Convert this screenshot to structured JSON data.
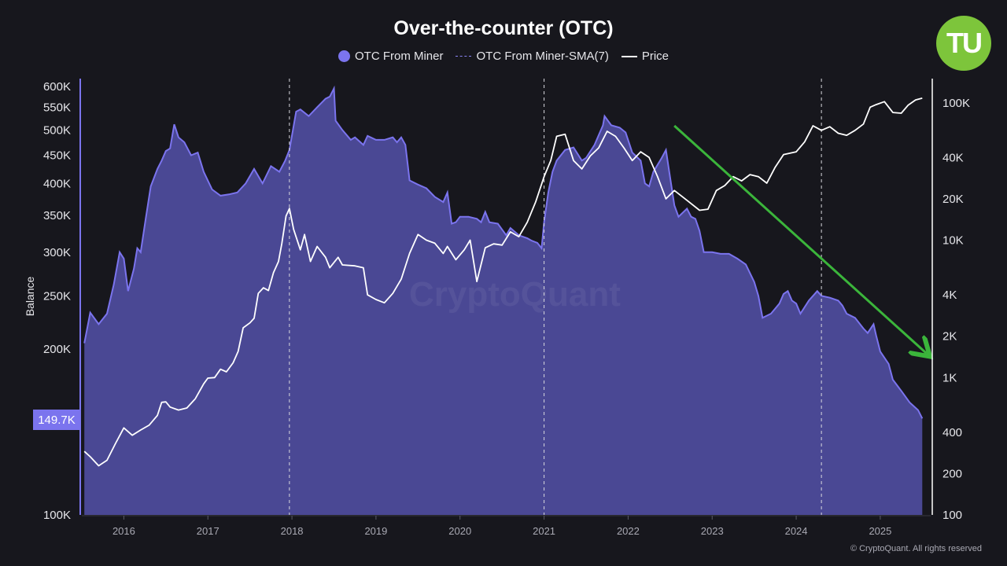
{
  "chart_data": {
    "type": "area",
    "title": "Over-the-counter (OTC)",
    "ylabel": "Balance",
    "y_scale": "log",
    "y2_scale": "log",
    "ylim": [
      100000,
      620000
    ],
    "y2lim": [
      100,
      150000
    ],
    "xlim": [
      2015.5,
      2025.6
    ],
    "x_ticks": [
      "2016",
      "2017",
      "2018",
      "2019",
      "2020",
      "2021",
      "2022",
      "2023",
      "2024",
      "2025"
    ],
    "y_ticks": [
      "100K",
      "200K",
      "250K",
      "300K",
      "350K",
      "400K",
      "450K",
      "500K",
      "550K",
      "600K"
    ],
    "y2_ticks": [
      "100",
      "200",
      "400",
      "1K",
      "2K",
      "4K",
      "10K",
      "20K",
      "40K",
      "100K"
    ],
    "last_value_label": "149.7K",
    "vertical_markers": [
      2017.97,
      2021.0,
      2024.3
    ],
    "watermark": "CryptoQuant",
    "legend_position": "top",
    "grid": false,
    "series": [
      {
        "name": "OTC From Miner",
        "color": "#7b74ee",
        "kind": "area",
        "points": [
          [
            2015.53,
            205000
          ],
          [
            2015.6,
            233000
          ],
          [
            2015.7,
            222000
          ],
          [
            2015.8,
            232000
          ],
          [
            2015.88,
            262000
          ],
          [
            2015.95,
            300000
          ],
          [
            2016.0,
            292000
          ],
          [
            2016.05,
            255000
          ],
          [
            2016.12,
            280000
          ],
          [
            2016.16,
            305000
          ],
          [
            2016.2,
            300000
          ],
          [
            2016.26,
            345000
          ],
          [
            2016.32,
            395000
          ],
          [
            2016.4,
            425000
          ],
          [
            2016.45,
            440000
          ],
          [
            2016.5,
            458000
          ],
          [
            2016.55,
            463000
          ],
          [
            2016.6,
            512000
          ],
          [
            2016.65,
            485000
          ],
          [
            2016.72,
            475000
          ],
          [
            2016.8,
            450000
          ],
          [
            2016.88,
            455000
          ],
          [
            2016.95,
            420000
          ],
          [
            2017.05,
            390000
          ],
          [
            2017.15,
            380000
          ],
          [
            2017.25,
            382000
          ],
          [
            2017.35,
            385000
          ],
          [
            2017.45,
            400000
          ],
          [
            2017.55,
            425000
          ],
          [
            2017.65,
            400000
          ],
          [
            2017.75,
            430000
          ],
          [
            2017.85,
            420000
          ],
          [
            2017.92,
            440000
          ],
          [
            2017.97,
            460000
          ],
          [
            2018.05,
            540000
          ],
          [
            2018.1,
            545000
          ],
          [
            2018.2,
            530000
          ],
          [
            2018.3,
            550000
          ],
          [
            2018.4,
            570000
          ],
          [
            2018.45,
            575000
          ],
          [
            2018.5,
            595000
          ],
          [
            2018.52,
            520000
          ],
          [
            2018.6,
            500000
          ],
          [
            2018.7,
            480000
          ],
          [
            2018.75,
            485000
          ],
          [
            2018.85,
            470000
          ],
          [
            2018.9,
            488000
          ],
          [
            2019.0,
            480000
          ],
          [
            2019.1,
            480000
          ],
          [
            2019.2,
            485000
          ],
          [
            2019.25,
            475000
          ],
          [
            2019.3,
            485000
          ],
          [
            2019.35,
            470000
          ],
          [
            2019.38,
            430000
          ],
          [
            2019.4,
            405000
          ],
          [
            2019.5,
            398000
          ],
          [
            2019.6,
            392000
          ],
          [
            2019.7,
            378000
          ],
          [
            2019.8,
            370000
          ],
          [
            2019.85,
            385000
          ],
          [
            2019.9,
            338000
          ],
          [
            2019.95,
            340000
          ],
          [
            2020.0,
            348000
          ],
          [
            2020.1,
            348000
          ],
          [
            2020.2,
            345000
          ],
          [
            2020.25,
            340000
          ],
          [
            2020.3,
            355000
          ],
          [
            2020.35,
            340000
          ],
          [
            2020.45,
            338000
          ],
          [
            2020.55,
            322000
          ],
          [
            2020.6,
            332000
          ],
          [
            2020.7,
            322000
          ],
          [
            2020.8,
            318000
          ],
          [
            2020.85,
            315000
          ],
          [
            2020.92,
            312000
          ],
          [
            2020.97,
            305000
          ],
          [
            2021.0,
            340000
          ],
          [
            2021.05,
            385000
          ],
          [
            2021.1,
            420000
          ],
          [
            2021.15,
            440000
          ],
          [
            2021.25,
            460000
          ],
          [
            2021.35,
            465000
          ],
          [
            2021.45,
            440000
          ],
          [
            2021.5,
            445000
          ],
          [
            2021.6,
            470000
          ],
          [
            2021.7,
            510000
          ],
          [
            2021.72,
            530000
          ],
          [
            2021.8,
            510000
          ],
          [
            2021.9,
            505000
          ],
          [
            2021.97,
            495000
          ],
          [
            2022.05,
            455000
          ],
          [
            2022.15,
            440000
          ],
          [
            2022.2,
            400000
          ],
          [
            2022.25,
            395000
          ],
          [
            2022.3,
            420000
          ],
          [
            2022.4,
            445000
          ],
          [
            2022.45,
            460000
          ],
          [
            2022.5,
            410000
          ],
          [
            2022.55,
            365000
          ],
          [
            2022.6,
            348000
          ],
          [
            2022.7,
            360000
          ],
          [
            2022.75,
            348000
          ],
          [
            2022.8,
            345000
          ],
          [
            2022.85,
            328000
          ],
          [
            2022.9,
            300000
          ],
          [
            2023.0,
            300000
          ],
          [
            2023.1,
            298000
          ],
          [
            2023.2,
            298000
          ],
          [
            2023.3,
            292000
          ],
          [
            2023.4,
            285000
          ],
          [
            2023.5,
            265000
          ],
          [
            2023.55,
            250000
          ],
          [
            2023.6,
            228000
          ],
          [
            2023.7,
            232000
          ],
          [
            2023.8,
            242000
          ],
          [
            2023.85,
            252000
          ],
          [
            2023.9,
            255000
          ],
          [
            2023.95,
            245000
          ],
          [
            2024.0,
            242000
          ],
          [
            2024.05,
            232000
          ],
          [
            2024.15,
            245000
          ],
          [
            2024.25,
            255000
          ],
          [
            2024.3,
            250000
          ],
          [
            2024.4,
            248000
          ],
          [
            2024.5,
            245000
          ],
          [
            2024.55,
            240000
          ],
          [
            2024.6,
            232000
          ],
          [
            2024.7,
            228000
          ],
          [
            2024.8,
            218000
          ],
          [
            2024.85,
            214000
          ],
          [
            2024.92,
            222000
          ],
          [
            2024.95,
            212000
          ],
          [
            2025.0,
            198000
          ],
          [
            2025.1,
            188000
          ],
          [
            2025.15,
            176000
          ],
          [
            2025.25,
            168000
          ],
          [
            2025.35,
            160000
          ],
          [
            2025.45,
            155000
          ],
          [
            2025.5,
            149700
          ]
        ]
      },
      {
        "name": "OTC From Miner-SMA(7)",
        "color": "#8a84f5",
        "kind": "line-dashed",
        "points": []
      },
      {
        "name": "Price",
        "color": "#ffffff",
        "kind": "line",
        "axis": "right",
        "points": [
          [
            2015.53,
            290
          ],
          [
            2015.6,
            265
          ],
          [
            2015.7,
            228
          ],
          [
            2015.8,
            250
          ],
          [
            2015.9,
            330
          ],
          [
            2016.0,
            430
          ],
          [
            2016.1,
            380
          ],
          [
            2016.2,
            415
          ],
          [
            2016.3,
            450
          ],
          [
            2016.4,
            530
          ],
          [
            2016.45,
            660
          ],
          [
            2016.5,
            665
          ],
          [
            2016.55,
            610
          ],
          [
            2016.65,
            580
          ],
          [
            2016.75,
            600
          ],
          [
            2016.85,
            700
          ],
          [
            2016.95,
            900
          ],
          [
            2017.0,
            990
          ],
          [
            2017.08,
            1000
          ],
          [
            2017.15,
            1150
          ],
          [
            2017.22,
            1100
          ],
          [
            2017.3,
            1280
          ],
          [
            2017.36,
            1550
          ],
          [
            2017.42,
            2300
          ],
          [
            2017.5,
            2500
          ],
          [
            2017.55,
            2700
          ],
          [
            2017.6,
            4100
          ],
          [
            2017.66,
            4500
          ],
          [
            2017.72,
            4300
          ],
          [
            2017.78,
            5800
          ],
          [
            2017.84,
            7000
          ],
          [
            2017.88,
            9500
          ],
          [
            2017.93,
            15000
          ],
          [
            2017.97,
            17000
          ],
          [
            2018.02,
            12000
          ],
          [
            2018.1,
            8500
          ],
          [
            2018.15,
            11000
          ],
          [
            2018.22,
            7000
          ],
          [
            2018.3,
            9000
          ],
          [
            2018.4,
            7500
          ],
          [
            2018.45,
            6300
          ],
          [
            2018.55,
            7500
          ],
          [
            2018.6,
            6600
          ],
          [
            2018.75,
            6500
          ],
          [
            2018.85,
            6300
          ],
          [
            2018.9,
            4000
          ],
          [
            2019.0,
            3700
          ],
          [
            2019.1,
            3500
          ],
          [
            2019.2,
            4100
          ],
          [
            2019.3,
            5200
          ],
          [
            2019.4,
            8000
          ],
          [
            2019.5,
            11000
          ],
          [
            2019.6,
            10000
          ],
          [
            2019.7,
            9500
          ],
          [
            2019.8,
            8000
          ],
          [
            2019.85,
            9000
          ],
          [
            2019.95,
            7200
          ],
          [
            2020.05,
            8500
          ],
          [
            2020.12,
            10000
          ],
          [
            2020.2,
            5000
          ],
          [
            2020.3,
            8800
          ],
          [
            2020.4,
            9400
          ],
          [
            2020.5,
            9200
          ],
          [
            2020.6,
            11500
          ],
          [
            2020.7,
            10600
          ],
          [
            2020.8,
            13500
          ],
          [
            2020.9,
            19000
          ],
          [
            2021.0,
            29000
          ],
          [
            2021.08,
            38000
          ],
          [
            2021.15,
            57000
          ],
          [
            2021.25,
            59000
          ],
          [
            2021.35,
            38000
          ],
          [
            2021.45,
            33000
          ],
          [
            2021.55,
            41000
          ],
          [
            2021.65,
            47000
          ],
          [
            2021.75,
            62000
          ],
          [
            2021.85,
            57000
          ],
          [
            2021.95,
            47000
          ],
          [
            2022.05,
            38000
          ],
          [
            2022.15,
            44000
          ],
          [
            2022.25,
            40000
          ],
          [
            2022.35,
            29000
          ],
          [
            2022.45,
            20000
          ],
          [
            2022.55,
            23000
          ],
          [
            2022.7,
            19500
          ],
          [
            2022.85,
            16500
          ],
          [
            2022.95,
            16800
          ],
          [
            2023.05,
            23000
          ],
          [
            2023.15,
            25000
          ],
          [
            2023.25,
            29000
          ],
          [
            2023.35,
            27000
          ],
          [
            2023.45,
            30000
          ],
          [
            2023.55,
            29000
          ],
          [
            2023.65,
            26000
          ],
          [
            2023.75,
            34000
          ],
          [
            2023.85,
            42000
          ],
          [
            2024.0,
            44000
          ],
          [
            2024.1,
            52000
          ],
          [
            2024.2,
            68000
          ],
          [
            2024.3,
            63000
          ],
          [
            2024.4,
            67000
          ],
          [
            2024.5,
            60000
          ],
          [
            2024.6,
            58000
          ],
          [
            2024.7,
            63000
          ],
          [
            2024.8,
            70000
          ],
          [
            2024.88,
            93000
          ],
          [
            2024.95,
            97000
          ],
          [
            2025.05,
            102000
          ],
          [
            2025.15,
            85000
          ],
          [
            2025.25,
            84000
          ],
          [
            2025.33,
            96000
          ],
          [
            2025.42,
            105000
          ],
          [
            2025.5,
            108000
          ]
        ]
      }
    ],
    "annotations": [
      {
        "type": "arrow",
        "color": "#3bb53b",
        "from": [
          2022.55,
          68000
        ],
        "to": [
          2025.55,
          1500
        ]
      }
    ]
  },
  "copyright": "© CryptoQuant. All rights reserved",
  "logo_text": "TU",
  "colors": {
    "background": "#17171d",
    "area": "#7b74ee",
    "area_fill": "#4a4894",
    "price": "#ffffff",
    "arrow": "#3bb53b"
  }
}
